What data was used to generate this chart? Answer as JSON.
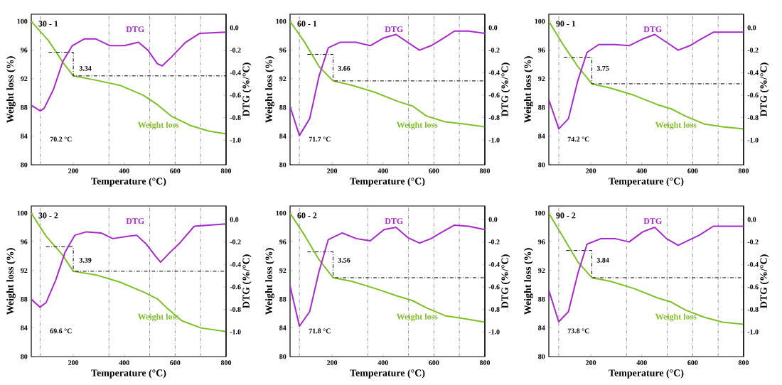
{
  "chart_data": [
    {
      "type": "line",
      "title": "30 - 1",
      "xlabel": "Temperature (°C)",
      "ylabel": "Weight loss (%)",
      "y2label": "DTG (%/°C)",
      "xlim": [
        35,
        800
      ],
      "ylim": [
        80,
        101
      ],
      "y2lim": [
        -1.22,
        0.12
      ],
      "xticks": [
        200,
        400,
        600,
        800
      ],
      "yticks": [
        80,
        84,
        88,
        92,
        96,
        100
      ],
      "y2ticks": [
        {
          "value": 0,
          "label": "0.0"
        },
        {
          "value": -0.2,
          "label": "-0.2"
        },
        {
          "value": -0.4,
          "label": "-0.4"
        },
        {
          "value": -0.6,
          "label": "-0.6"
        },
        {
          "value": -0.8,
          "label": "-0.8"
        },
        {
          "value": -1.0,
          "label": "-1.0"
        }
      ],
      "series": [
        {
          "name": "Weight loss",
          "color": "#7fbf2a",
          "x": [
            35,
            103,
            159,
            200,
            289,
            382,
            475,
            530,
            584,
            658,
            732,
            800
          ],
          "values": [
            100,
            97.3,
            94.3,
            92.4,
            91.8,
            91.1,
            89.7,
            88.4,
            86.8,
            85.5,
            84.7,
            84.3
          ]
        },
        {
          "name": "DTG",
          "color": "#a52ac8",
          "axis": "y2",
          "x": [
            35,
            70.2,
            85,
            122,
            159,
            196,
            243,
            289,
            344,
            400,
            456,
            493,
            530,
            549,
            586,
            641,
            697,
            800
          ],
          "values": [
            -0.69,
            -0.74,
            -0.72,
            -0.55,
            -0.3,
            -0.16,
            -0.1,
            -0.1,
            -0.16,
            -0.16,
            -0.13,
            -0.2,
            -0.32,
            -0.34,
            -0.26,
            -0.13,
            -0.05,
            -0.04
          ]
        },
        {
          "color": "#000000",
          "line_style": "dashed",
          "x": [
            103,
            200,
            200,
            800
          ],
          "values": [
            95.7,
            95.7,
            92.4,
            92.4
          ]
        }
      ],
      "ref_lines": [
        {
          "axis": "x",
          "value": 70.2,
          "color": "#808080",
          "line_style": "dashed"
        },
        {
          "axis": "x",
          "value": 340,
          "color": "#808080",
          "line_style": "dashed"
        },
        {
          "axis": "x",
          "value": 500,
          "color": "#808080",
          "line_style": "dashed"
        },
        {
          "axis": "x",
          "value": 600,
          "color": "#808080",
          "line_style": "dashed"
        },
        {
          "axis": "x",
          "value": 700,
          "color": "#808080",
          "line_style": "dashed"
        }
      ],
      "annotations": [
        "3.34",
        "70.2 °C"
      ]
    },
    {
      "type": "line",
      "title": "60 - 1",
      "xlabel": "Temperature (°C)",
      "ylabel": "Weight loss (%)",
      "y2label": "DTG (%/°C)",
      "xlim": [
        35,
        800
      ],
      "ylim": [
        80,
        101
      ],
      "y2lim": [
        -1.22,
        0.12
      ],
      "xticks": [
        200,
        400,
        600,
        800
      ],
      "yticks": [
        80,
        84,
        88,
        92,
        96,
        100
      ],
      "y2ticks": [
        {
          "value": 0,
          "label": "0.0"
        },
        {
          "value": -0.2,
          "label": "-0.2"
        },
        {
          "value": -0.4,
          "label": "-0.4"
        },
        {
          "value": -0.6,
          "label": "-0.6"
        },
        {
          "value": -0.8,
          "label": "-0.8"
        },
        {
          "value": -1.0,
          "label": "-1.0"
        }
      ],
      "series": [
        {
          "name": "Weight loss",
          "color": "#7fbf2a",
          "x": [
            35,
            94,
            149,
            204,
            277,
            369,
            461,
            516,
            571,
            644,
            717,
            800
          ],
          "values": [
            100,
            97,
            93.7,
            91.7,
            91.1,
            90.1,
            88.8,
            88.2,
            86.8,
            86.0,
            85.7,
            85.3
          ]
        },
        {
          "name": "DTG",
          "color": "#a52ac8",
          "axis": "y2",
          "x": [
            35,
            71.7,
            112,
            149,
            185,
            231,
            295,
            350,
            404,
            451,
            497,
            543,
            589,
            626,
            681,
            736,
            800
          ],
          "values": [
            -0.7,
            -0.96,
            -0.81,
            -0.43,
            -0.18,
            -0.13,
            -0.13,
            -0.16,
            -0.09,
            -0.06,
            -0.13,
            -0.2,
            -0.16,
            -0.11,
            -0.03,
            -0.03,
            -0.05
          ]
        },
        {
          "color": "#000000",
          "line_style": "dashed",
          "x": [
            103,
            204,
            204,
            800
          ],
          "values": [
            95.4,
            95.4,
            91.7,
            91.7
          ]
        }
      ],
      "ref_lines": [
        {
          "axis": "x",
          "value": 71.7,
          "color": "#808080",
          "line_style": "dashed"
        },
        {
          "axis": "x",
          "value": 340,
          "color": "#808080",
          "line_style": "dashed"
        },
        {
          "axis": "x",
          "value": 500,
          "color": "#808080",
          "line_style": "dashed"
        },
        {
          "axis": "x",
          "value": 600,
          "color": "#808080",
          "line_style": "dashed"
        },
        {
          "axis": "x",
          "value": 700,
          "color": "#808080",
          "line_style": "dashed"
        }
      ],
      "annotations": [
        "3.66",
        "71.7 °C"
      ]
    },
    {
      "type": "line",
      "title": "90 - 1",
      "xlabel": "Temperature (°C)",
      "ylabel": "Weight loss (%)",
      "y2label": "DTG (%/°C)",
      "xlim": [
        35,
        800
      ],
      "ylim": [
        80,
        101
      ],
      "y2lim": [
        -1.22,
        0.12
      ],
      "xticks": [
        200,
        400,
        600,
        800
      ],
      "yticks": [
        80,
        84,
        88,
        92,
        96,
        100
      ],
      "y2ticks": [
        {
          "value": 0,
          "label": "0.0"
        },
        {
          "value": -0.2,
          "label": "-0.2"
        },
        {
          "value": -0.4,
          "label": "-0.4"
        },
        {
          "value": -0.6,
          "label": "-0.6"
        },
        {
          "value": -0.8,
          "label": "-0.8"
        },
        {
          "value": -1.0,
          "label": "-1.0"
        }
      ],
      "series": [
        {
          "name": "Weight loss",
          "color": "#7fbf2a",
          "x": [
            35,
            94,
            149,
            204,
            277,
            369,
            461,
            516,
            571,
            644,
            717,
            800
          ],
          "values": [
            100,
            96.6,
            93.7,
            91.3,
            90.7,
            89.7,
            88.4,
            87.8,
            86.8,
            85.7,
            85.3,
            85.0
          ]
        },
        {
          "name": "DTG",
          "color": "#a52ac8",
          "axis": "y2",
          "x": [
            35,
            74.2,
            112,
            149,
            185,
            231,
            295,
            350,
            404,
            451,
            497,
            543,
            589,
            626,
            681,
            800
          ],
          "values": [
            -0.64,
            -0.9,
            -0.81,
            -0.47,
            -0.22,
            -0.15,
            -0.15,
            -0.16,
            -0.1,
            -0.06,
            -0.13,
            -0.2,
            -0.16,
            -0.11,
            -0.04,
            -0.04
          ]
        },
        {
          "color": "#000000",
          "line_style": "dashed",
          "x": [
            94,
            204,
            204,
            800
          ],
          "values": [
            95.0,
            95.0,
            91.3,
            91.3
          ]
        }
      ],
      "ref_lines": [
        {
          "axis": "x",
          "value": 74.2,
          "color": "#808080",
          "line_style": "dashed"
        },
        {
          "axis": "x",
          "value": 340,
          "color": "#808080",
          "line_style": "dashed"
        },
        {
          "axis": "x",
          "value": 500,
          "color": "#808080",
          "line_style": "dashed"
        },
        {
          "axis": "x",
          "value": 600,
          "color": "#808080",
          "line_style": "dashed"
        },
        {
          "axis": "x",
          "value": 700,
          "color": "#808080",
          "line_style": "dashed"
        }
      ],
      "annotations": [
        "3.75",
        "74.2 °C"
      ]
    },
    {
      "type": "line",
      "title": "30 - 2",
      "xlabel": "Temperature (°C)",
      "ylabel": "Weight loss (%)",
      "y2label": "DTG (%/°C)",
      "xlim": [
        35,
        800
      ],
      "ylim": [
        80,
        101
      ],
      "y2lim": [
        -1.22,
        0.12
      ],
      "xticks": [
        200,
        400,
        600,
        800
      ],
      "yticks": [
        80,
        84,
        88,
        92,
        96,
        100
      ],
      "y2ticks": [
        {
          "value": 0,
          "label": "0.0"
        },
        {
          "value": -0.2,
          "label": "-0.2"
        },
        {
          "value": -0.4,
          "label": "-0.4"
        },
        {
          "value": -0.6,
          "label": "-0.6"
        },
        {
          "value": -0.8,
          "label": "-0.8"
        },
        {
          "value": -1.0,
          "label": "-1.0"
        }
      ],
      "series": [
        {
          "name": "Weight loss",
          "color": "#7fbf2a",
          "x": [
            35,
            93,
            157,
            200,
            288,
            382,
            476,
            532,
            570,
            626,
            701,
            800
          ],
          "values": [
            100,
            96.8,
            94.2,
            91.9,
            91.4,
            90.4,
            89.0,
            88.0,
            86.7,
            85.0,
            84.0,
            83.5
          ]
        },
        {
          "name": "DTG",
          "color": "#a52ac8",
          "axis": "y2",
          "x": [
            35,
            69.6,
            93,
            131,
            168,
            206,
            252,
            309,
            355,
            412,
            449,
            487,
            524,
            543,
            581,
            618,
            675,
            731,
            800
          ],
          "values": [
            -0.71,
            -0.78,
            -0.74,
            -0.54,
            -0.29,
            -0.14,
            -0.11,
            -0.12,
            -0.17,
            -0.15,
            -0.14,
            -0.22,
            -0.33,
            -0.38,
            -0.29,
            -0.21,
            -0.06,
            -0.05,
            -0.04
          ]
        },
        {
          "color": "#000000",
          "line_style": "dashed",
          "x": [
            93,
            200,
            200,
            800
          ],
          "values": [
            95.3,
            95.3,
            91.9,
            91.9
          ]
        }
      ],
      "ref_lines": [
        {
          "axis": "x",
          "value": 69.6,
          "color": "#808080",
          "line_style": "dashed"
        },
        {
          "axis": "x",
          "value": 340,
          "color": "#808080",
          "line_style": "dashed"
        },
        {
          "axis": "x",
          "value": 500,
          "color": "#808080",
          "line_style": "dashed"
        },
        {
          "axis": "x",
          "value": 600,
          "color": "#808080",
          "line_style": "dashed"
        },
        {
          "axis": "x",
          "value": 700,
          "color": "#808080",
          "line_style": "dashed"
        }
      ],
      "annotations": [
        "3.39",
        "69.6 °C"
      ]
    },
    {
      "type": "line",
      "title": "60 - 2",
      "xlabel": "Temperature (°C)",
      "ylabel": "Weight loss (%)",
      "y2label": "DTG (%/°C)",
      "xlim": [
        35,
        800
      ],
      "ylim": [
        80,
        101
      ],
      "y2lim": [
        -1.22,
        0.12
      ],
      "xticks": [
        200,
        400,
        600,
        800
      ],
      "yticks": [
        80,
        84,
        88,
        92,
        96,
        100
      ],
      "y2ticks": [
        {
          "value": 0,
          "label": "0.0"
        },
        {
          "value": -0.2,
          "label": "-0.2"
        },
        {
          "value": -0.4,
          "label": "-0.4"
        },
        {
          "value": -0.6,
          "label": "-0.6"
        },
        {
          "value": -0.8,
          "label": "-0.8"
        },
        {
          "value": -1.0,
          "label": "-1.0"
        }
      ],
      "series": [
        {
          "name": "Weight loss",
          "color": "#7fbf2a",
          "x": [
            35,
            94,
            149,
            204,
            277,
            369,
            461,
            516,
            571,
            644,
            717,
            800
          ],
          "values": [
            100,
            96.8,
            93.5,
            91.0,
            90.5,
            89.5,
            88.4,
            87.8,
            86.8,
            85.7,
            85.3,
            84.8
          ]
        },
        {
          "name": "DTG",
          "color": "#a52ac8",
          "axis": "y2",
          "x": [
            35,
            71.8,
            112,
            149,
            185,
            240,
            295,
            350,
            404,
            451,
            497,
            543,
            589,
            626,
            681,
            736,
            800
          ],
          "values": [
            -0.59,
            -0.95,
            -0.82,
            -0.46,
            -0.18,
            -0.12,
            -0.17,
            -0.19,
            -0.09,
            -0.07,
            -0.16,
            -0.21,
            -0.17,
            -0.12,
            -0.05,
            -0.06,
            -0.09
          ]
        },
        {
          "color": "#000000",
          "line_style": "dashed",
          "x": [
            103,
            204,
            204,
            800
          ],
          "values": [
            94.6,
            94.6,
            91.0,
            91.0
          ]
        }
      ],
      "ref_lines": [
        {
          "axis": "x",
          "value": 71.8,
          "color": "#808080",
          "line_style": "dashed"
        },
        {
          "axis": "x",
          "value": 340,
          "color": "#808080",
          "line_style": "dashed"
        },
        {
          "axis": "x",
          "value": 500,
          "color": "#808080",
          "line_style": "dashed"
        },
        {
          "axis": "x",
          "value": 600,
          "color": "#808080",
          "line_style": "dashed"
        },
        {
          "axis": "x",
          "value": 700,
          "color": "#808080",
          "line_style": "dashed"
        }
      ],
      "annotations": [
        "3.56",
        "71.8 °C"
      ]
    },
    {
      "type": "line",
      "title": "90 - 2",
      "xlabel": "Temperature (°C)",
      "ylabel": "Weight loss (%)",
      "y2label": "DTG (%/°C)",
      "xlim": [
        35,
        800
      ],
      "ylim": [
        80,
        101
      ],
      "y2lim": [
        -1.22,
        0.12
      ],
      "xticks": [
        200,
        400,
        600,
        800
      ],
      "yticks": [
        80,
        84,
        88,
        92,
        96,
        100
      ],
      "y2ticks": [
        {
          "value": 0,
          "label": "0.0"
        },
        {
          "value": -0.2,
          "label": "-0.2"
        },
        {
          "value": -0.4,
          "label": "-0.4"
        },
        {
          "value": -0.6,
          "label": "-0.6"
        },
        {
          "value": -0.8,
          "label": "-0.8"
        },
        {
          "value": -1.0,
          "label": "-1.0"
        }
      ],
      "series": [
        {
          "name": "Weight loss",
          "color": "#7fbf2a",
          "x": [
            35,
            94,
            149,
            204,
            277,
            369,
            461,
            516,
            571,
            644,
            717,
            800
          ],
          "values": [
            100,
            96.5,
            93.2,
            91.0,
            90.5,
            89.5,
            88.2,
            87.6,
            86.5,
            85.5,
            84.8,
            84.5
          ]
        },
        {
          "name": "DTG",
          "color": "#a52ac8",
          "axis": "y2",
          "x": [
            35,
            73.8,
            112,
            149,
            185,
            240,
            295,
            350,
            404,
            451,
            497,
            543,
            589,
            626,
            681,
            800
          ],
          "values": [
            -0.63,
            -0.91,
            -0.82,
            -0.48,
            -0.22,
            -0.17,
            -0.17,
            -0.2,
            -0.11,
            -0.07,
            -0.17,
            -0.23,
            -0.18,
            -0.14,
            -0.06,
            -0.06
          ]
        },
        {
          "color": "#000000",
          "line_style": "dashed",
          "x": [
            103,
            204,
            204,
            800
          ],
          "values": [
            94.8,
            94.8,
            91.0,
            91.0
          ]
        }
      ],
      "ref_lines": [
        {
          "axis": "x",
          "value": 73.8,
          "color": "#808080",
          "line_style": "dashed"
        },
        {
          "axis": "x",
          "value": 340,
          "color": "#808080",
          "line_style": "dashed"
        },
        {
          "axis": "x",
          "value": 500,
          "color": "#808080",
          "line_style": "dashed"
        },
        {
          "axis": "x",
          "value": 600,
          "color": "#808080",
          "line_style": "dashed"
        },
        {
          "axis": "x",
          "value": 700,
          "color": "#808080",
          "line_style": "dashed"
        }
      ],
      "annotations": [
        "3.84",
        "73.8 °C"
      ]
    }
  ]
}
